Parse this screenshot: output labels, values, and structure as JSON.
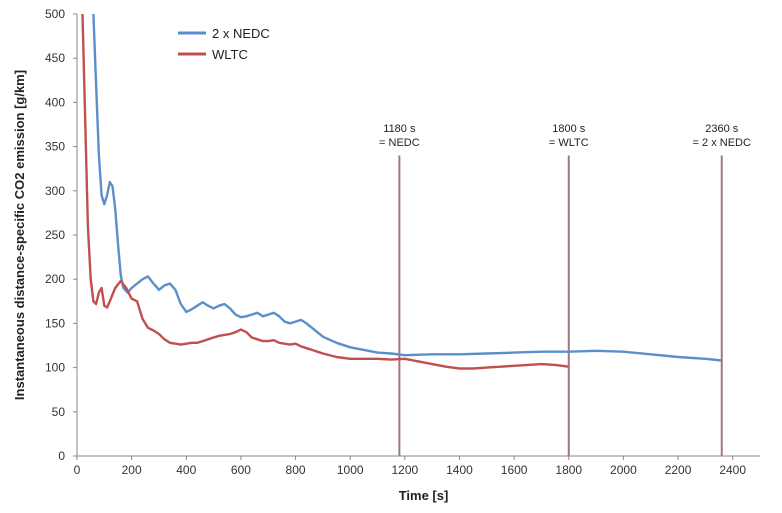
{
  "chart_data": {
    "type": "line",
    "xlabel": "Time [s]",
    "ylabel": "Instantaneous distance-specific CO2 emission [g/km]",
    "xlim": [
      0,
      2500
    ],
    "ylim": [
      0,
      500
    ],
    "x_ticks": [
      0,
      200,
      400,
      600,
      800,
      1000,
      1200,
      1400,
      1600,
      1800,
      2000,
      2200,
      2400
    ],
    "y_ticks": [
      0,
      50,
      100,
      150,
      200,
      250,
      300,
      350,
      400,
      450,
      500
    ],
    "grid": false,
    "legend_position": "top-left",
    "series": [
      {
        "name": "2 x NEDC",
        "color": "#5b8fcc",
        "points": [
          [
            60,
            500
          ],
          [
            70,
            420
          ],
          [
            80,
            340
          ],
          [
            90,
            295
          ],
          [
            100,
            285
          ],
          [
            110,
            295
          ],
          [
            120,
            310
          ],
          [
            130,
            305
          ],
          [
            140,
            280
          ],
          [
            150,
            240
          ],
          [
            160,
            205
          ],
          [
            170,
            190
          ],
          [
            185,
            185
          ],
          [
            200,
            190
          ],
          [
            220,
            195
          ],
          [
            240,
            200
          ],
          [
            260,
            203
          ],
          [
            280,
            195
          ],
          [
            300,
            188
          ],
          [
            320,
            193
          ],
          [
            340,
            195
          ],
          [
            360,
            188
          ],
          [
            380,
            172
          ],
          [
            400,
            163
          ],
          [
            420,
            166
          ],
          [
            440,
            170
          ],
          [
            460,
            174
          ],
          [
            480,
            170
          ],
          [
            500,
            167
          ],
          [
            520,
            170
          ],
          [
            540,
            172
          ],
          [
            560,
            167
          ],
          [
            580,
            160
          ],
          [
            600,
            157
          ],
          [
            620,
            158
          ],
          [
            640,
            160
          ],
          [
            660,
            162
          ],
          [
            680,
            158
          ],
          [
            700,
            160
          ],
          [
            720,
            162
          ],
          [
            740,
            158
          ],
          [
            760,
            152
          ],
          [
            780,
            150
          ],
          [
            800,
            152
          ],
          [
            820,
            154
          ],
          [
            840,
            150
          ],
          [
            860,
            145
          ],
          [
            880,
            140
          ],
          [
            900,
            135
          ],
          [
            950,
            128
          ],
          [
            1000,
            123
          ],
          [
            1050,
            120
          ],
          [
            1100,
            117
          ],
          [
            1150,
            116
          ],
          [
            1200,
            114
          ],
          [
            1300,
            115
          ],
          [
            1400,
            115
          ],
          [
            1500,
            116
          ],
          [
            1600,
            117
          ],
          [
            1700,
            118
          ],
          [
            1800,
            118
          ],
          [
            1900,
            119
          ],
          [
            2000,
            118
          ],
          [
            2100,
            115
          ],
          [
            2200,
            112
          ],
          [
            2300,
            110
          ],
          [
            2360,
            108
          ]
        ]
      },
      {
        "name": "WLTC",
        "color": "#c0504d",
        "points": [
          [
            20,
            500
          ],
          [
            30,
            380
          ],
          [
            40,
            260
          ],
          [
            50,
            200
          ],
          [
            60,
            175
          ],
          [
            70,
            172
          ],
          [
            80,
            185
          ],
          [
            90,
            190
          ],
          [
            100,
            170
          ],
          [
            110,
            168
          ],
          [
            120,
            175
          ],
          [
            140,
            190
          ],
          [
            160,
            198
          ],
          [
            180,
            190
          ],
          [
            200,
            178
          ],
          [
            220,
            175
          ],
          [
            240,
            155
          ],
          [
            260,
            145
          ],
          [
            280,
            142
          ],
          [
            300,
            138
          ],
          [
            320,
            132
          ],
          [
            340,
            128
          ],
          [
            360,
            127
          ],
          [
            380,
            126
          ],
          [
            400,
            127
          ],
          [
            420,
            128
          ],
          [
            440,
            128
          ],
          [
            460,
            130
          ],
          [
            480,
            132
          ],
          [
            500,
            134
          ],
          [
            520,
            136
          ],
          [
            540,
            137
          ],
          [
            560,
            138
          ],
          [
            580,
            140
          ],
          [
            600,
            143
          ],
          [
            620,
            140
          ],
          [
            640,
            134
          ],
          [
            660,
            132
          ],
          [
            680,
            130
          ],
          [
            700,
            130
          ],
          [
            720,
            131
          ],
          [
            740,
            128
          ],
          [
            760,
            127
          ],
          [
            780,
            126
          ],
          [
            800,
            127
          ],
          [
            820,
            124
          ],
          [
            840,
            122
          ],
          [
            860,
            120
          ],
          [
            880,
            118
          ],
          [
            900,
            116
          ],
          [
            950,
            112
          ],
          [
            1000,
            110
          ],
          [
            1050,
            110
          ],
          [
            1100,
            110
          ],
          [
            1150,
            109
          ],
          [
            1200,
            110
          ],
          [
            1250,
            107
          ],
          [
            1300,
            104
          ],
          [
            1350,
            101
          ],
          [
            1400,
            99
          ],
          [
            1450,
            99
          ],
          [
            1500,
            100
          ],
          [
            1550,
            101
          ],
          [
            1600,
            102
          ],
          [
            1650,
            103
          ],
          [
            1700,
            104
          ],
          [
            1750,
            103
          ],
          [
            1800,
            101
          ]
        ]
      }
    ],
    "annotations": [
      {
        "x": 1180,
        "line1": "1180 s",
        "line2": "= NEDC"
      },
      {
        "x": 1800,
        "line1": "1800 s",
        "line2": "= WLTC"
      },
      {
        "x": 2360,
        "line1": "2360 s",
        "line2": "= 2 x NEDC"
      }
    ],
    "marker_color": "#a07878"
  }
}
